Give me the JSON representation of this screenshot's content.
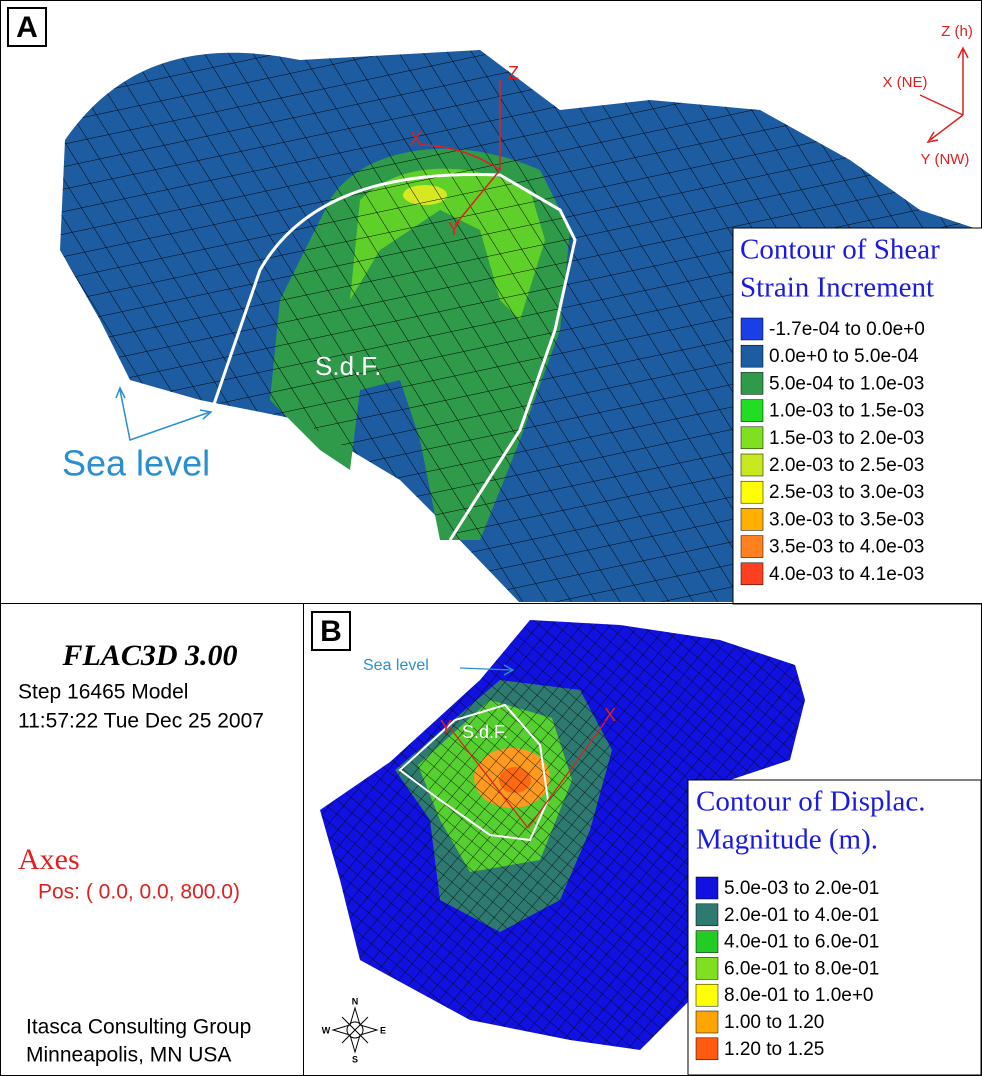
{
  "panel_a": {
    "label": "A",
    "global_axes": {
      "z": "Z (h)",
      "x": "X (NE)",
      "y": "Y (NW)"
    },
    "local_axes": {
      "z": "Z",
      "x": "X",
      "y": "Y"
    },
    "fault_label": "S.d.F.",
    "sea_level": "Sea level",
    "legend": {
      "title": [
        "Contour of Shear",
        "Strain Increment"
      ],
      "items": [
        {
          "label": "-1.7e-04 to  0.0e+0",
          "color": "#1a3fe6"
        },
        {
          "label": "0.0e+0 to  5.0e-04",
          "color": "#1e5ca2"
        },
        {
          "label": "5.0e-04 to  1.0e-03",
          "color": "#2e9a4a"
        },
        {
          "label": "1.0e-03 to  1.5e-03",
          "color": "#22dd22"
        },
        {
          "label": "1.5e-03 to  2.0e-03",
          "color": "#7ee020"
        },
        {
          "label": "2.0e-03 to  2.5e-03",
          "color": "#c8e820"
        },
        {
          "label": "2.5e-03 to  3.0e-03",
          "color": "#ffff00"
        },
        {
          "label": "3.0e-03 to  3.5e-03",
          "color": "#ffb000"
        },
        {
          "label": "3.5e-03 to  4.0e-03",
          "color": "#ff8020"
        },
        {
          "label": "4.0e-03 to  4.1e-03",
          "color": "#ff4020"
        }
      ]
    }
  },
  "info": {
    "software": "FLAC3D 3.00",
    "step": "Step 16465  Model",
    "timestamp": "11:57:22 Tue Dec 25 2007",
    "axes_title": "Axes",
    "axes_pos": "Pos: ( 0.0, 0.0, 800.0)",
    "company": "Itasca Consulting Group",
    "location": "Minneapolis, MN  USA"
  },
  "panel_b": {
    "label": "B",
    "sea_level": "Sea level",
    "fault_label": "S.d.F.",
    "local_axes": {
      "x": "X",
      "y": "Y"
    },
    "compass": {
      "n": "N",
      "s": "S",
      "e": "E",
      "w": "W"
    },
    "legend": {
      "title": [
        "Contour of Displac.",
        "Magnitude (m)."
      ],
      "items": [
        {
          "label": "5.0e-03 to  2.0e-01",
          "color": "#1212e0"
        },
        {
          "label": "2.0e-01 to  4.0e-01",
          "color": "#2e7a70"
        },
        {
          "label": "4.0e-01 to  6.0e-01",
          "color": "#22cc22"
        },
        {
          "label": "6.0e-01 to  8.0e-01",
          "color": "#80e020"
        },
        {
          "label": "8.0e-01 to  1.0e+0",
          "color": "#ffff00"
        },
        {
          "label": "1.00 to  1.20",
          "color": "#ffa500"
        },
        {
          "label": "1.20 to  1.25",
          "color": "#ff5a10"
        }
      ]
    }
  }
}
